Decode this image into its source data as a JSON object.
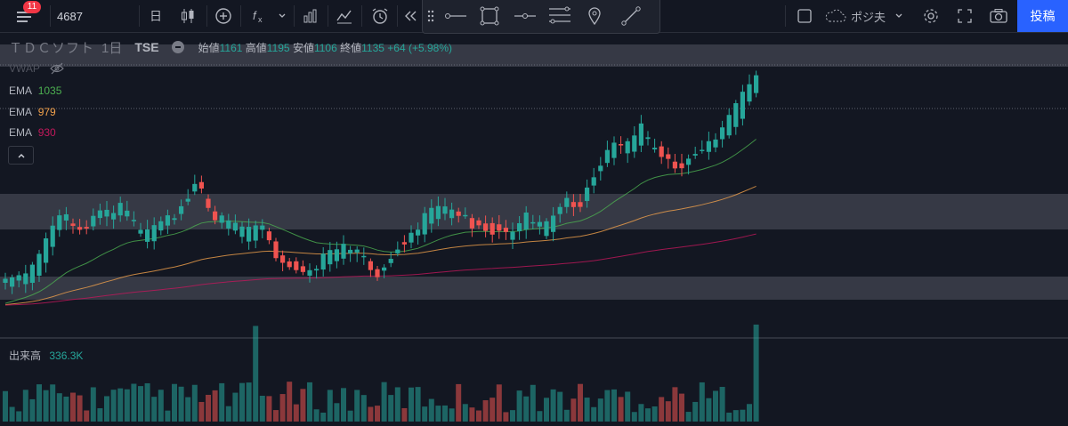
{
  "topbar": {
    "notification_count": "11",
    "symbol": "4687",
    "interval_label": "日",
    "position_label": "ポジ夫",
    "post_button": "投稿"
  },
  "legend": {
    "name": "ＴＤＣソフト",
    "timeframe": "1日",
    "exchange": "TSE",
    "open_label": "始値",
    "open": "1161",
    "high_label": "高値",
    "high": "1195",
    "low_label": "安値",
    "low": "1106",
    "close_label": "終値",
    "close": "1135",
    "change": "+64 (+5.98%)"
  },
  "indicators": {
    "vwap": "VWAP",
    "ema1_label": "EMA",
    "ema1_value": "1035",
    "ema2_label": "EMA",
    "ema2_value": "979",
    "ema3_label": "EMA",
    "ema3_value": "930"
  },
  "volume_pane": {
    "label": "出来高",
    "value": "336.3K"
  },
  "colors": {
    "background": "#131722",
    "up": "#26a69a",
    "down": "#ef5350",
    "ema_fast": "#4caf50",
    "ema_mid": "#f0a04b",
    "ema_slow": "#c2185b",
    "zone": "#434651",
    "accent": "#2962ff"
  },
  "icons": [
    "menu-icon",
    "candles-icon",
    "add-indicator-icon",
    "fx-icon",
    "bar-chart-icon",
    "line-chart-icon",
    "alarm-icon",
    "replay-icon",
    "drag-handle-icon",
    "horizontal-ray-icon",
    "rectangle-icon",
    "horizontal-line-icon",
    "parallel-channel-icon",
    "pin-icon",
    "trend-line-icon",
    "cloud-icon",
    "gear-icon",
    "fullscreen-icon",
    "camera-icon"
  ]
}
